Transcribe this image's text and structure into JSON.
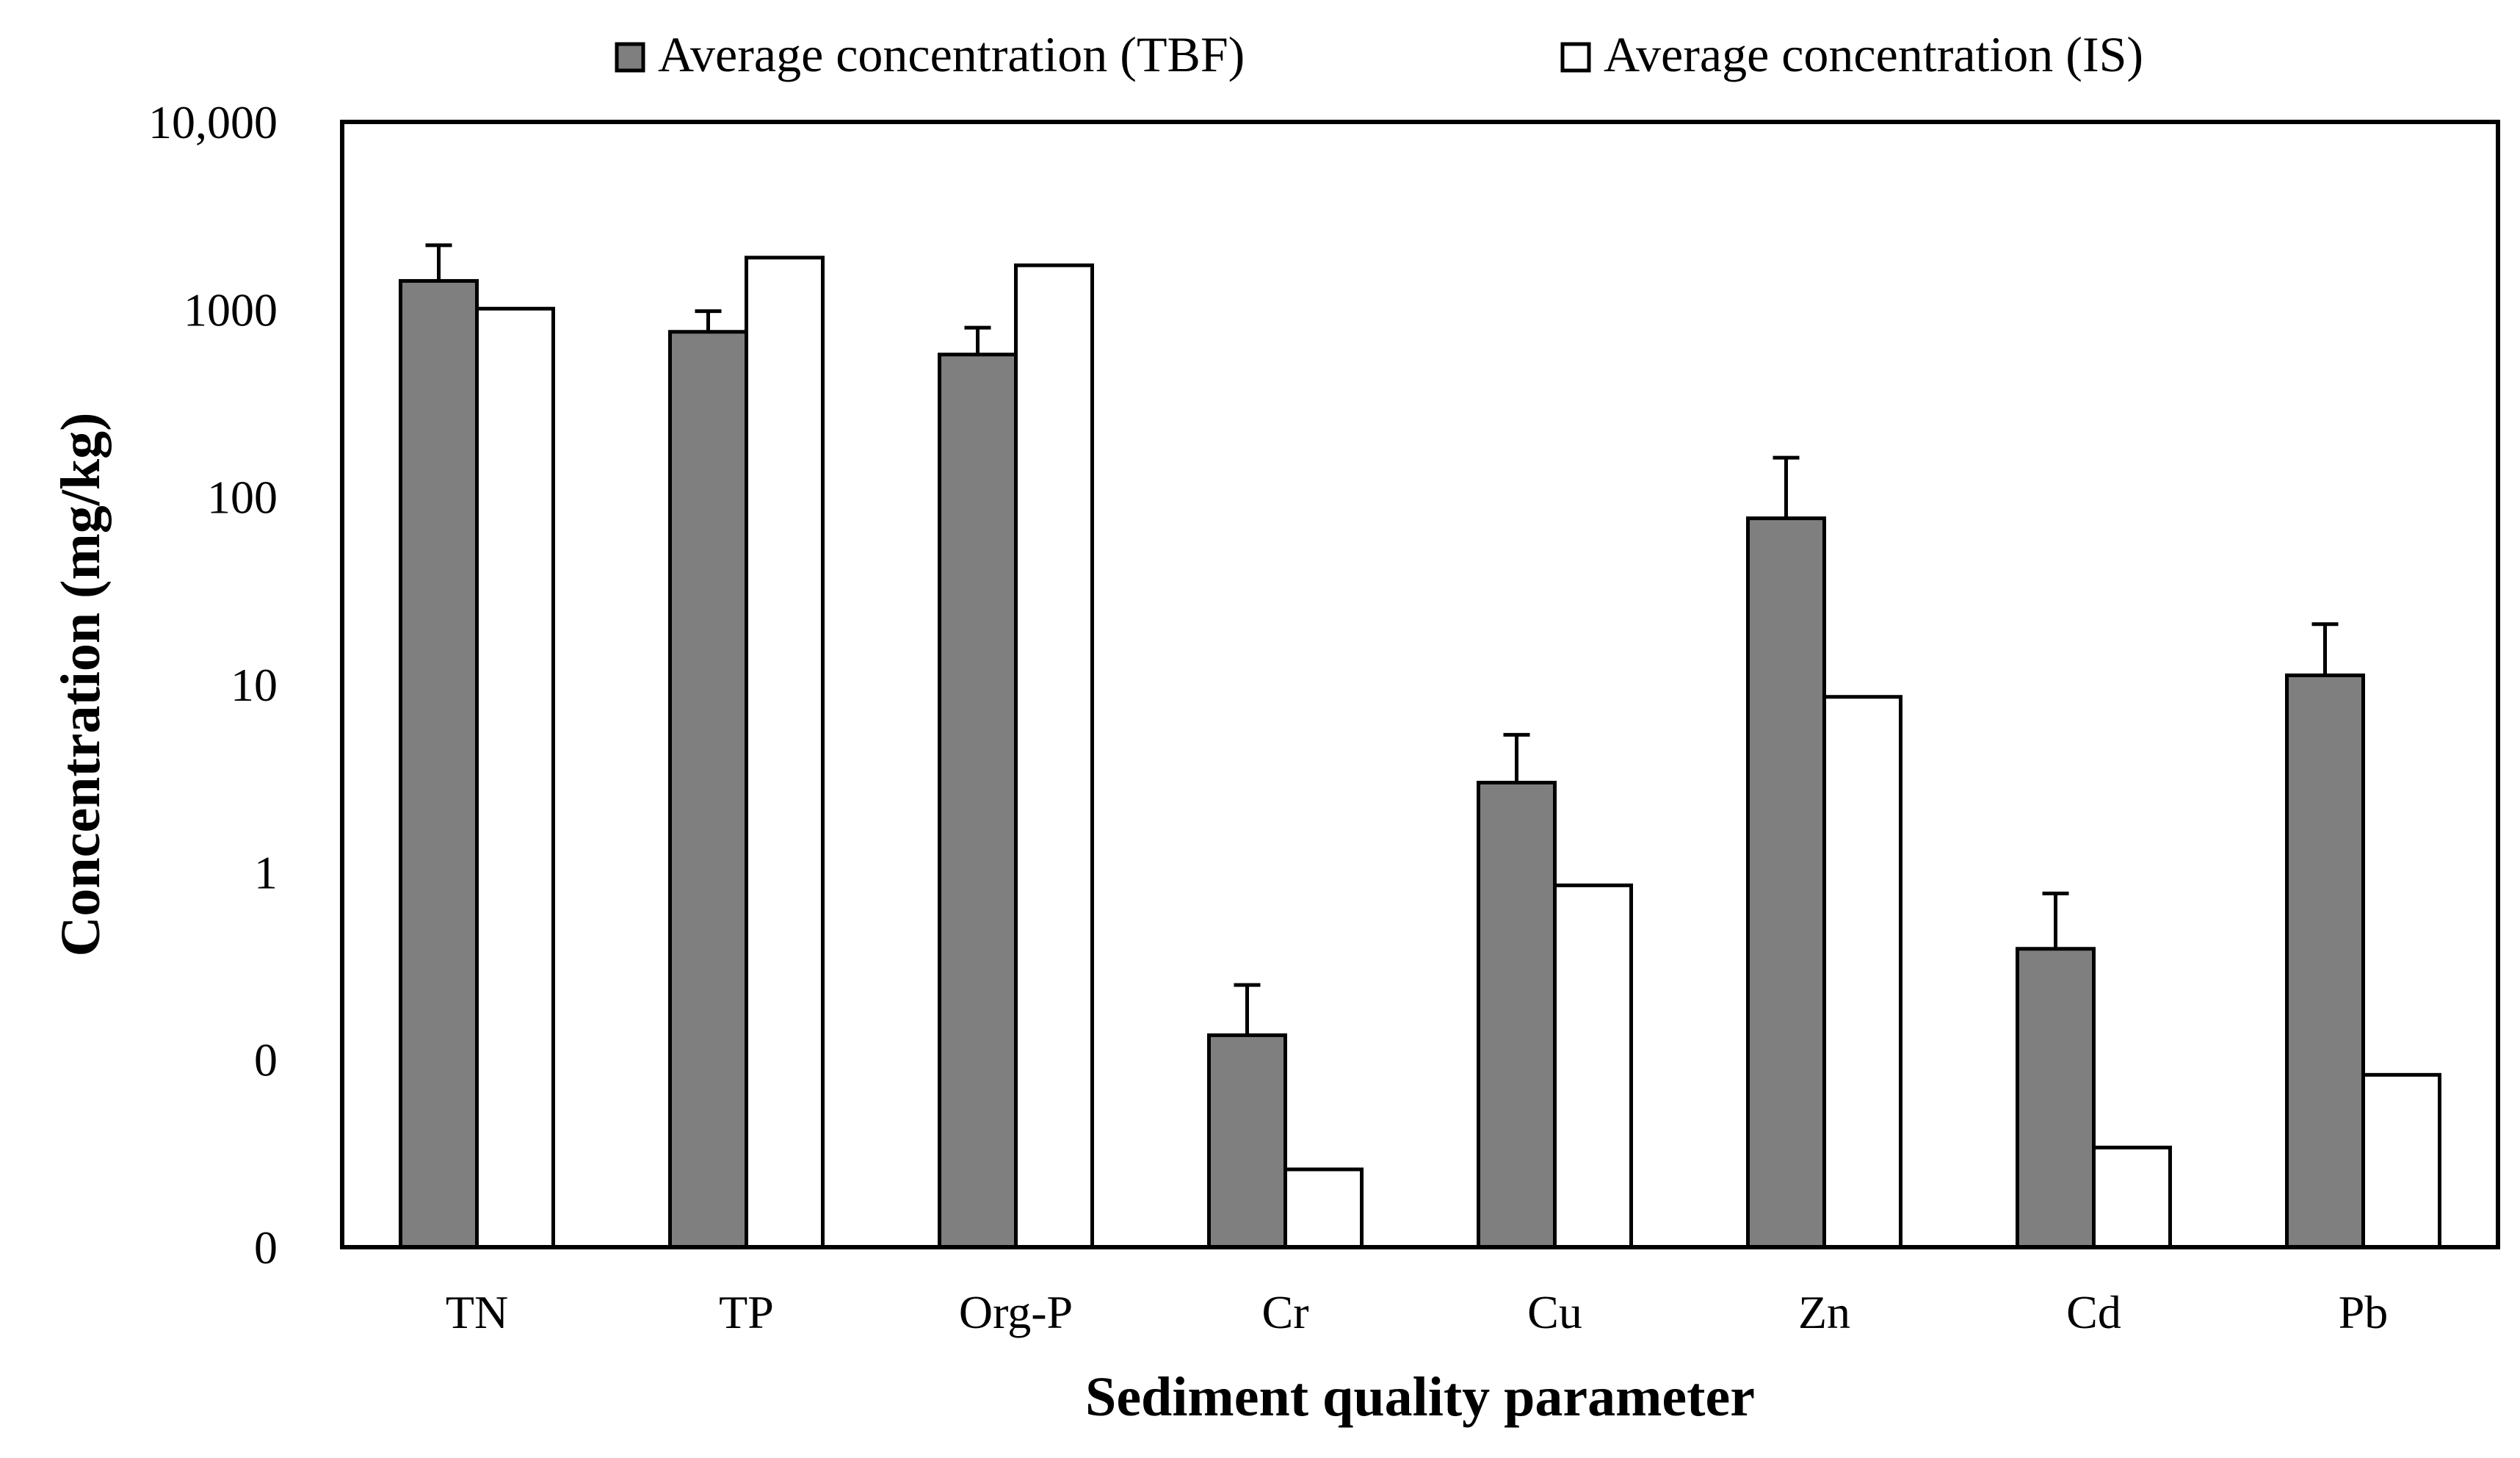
{
  "chart_data": {
    "type": "bar",
    "scale": "log",
    "categories": [
      "TN",
      "TP",
      "Org-P",
      "Cr",
      "Cu",
      "Zn",
      "Cd",
      "Pb"
    ],
    "series": [
      {
        "name": "Average concentration (TBF)",
        "color": "#7f7f7f",
        "values": [
          1420,
          760,
          575,
          0.135,
          3.0,
          77,
          0.39,
          11.2
        ],
        "error_upper": [
          2200,
          980,
          800,
          0.25,
          5.4,
          162,
          0.77,
          21
        ]
      },
      {
        "name": "Average concentration (IS)",
        "color": "#ffffff",
        "values": [
          1010,
          1890,
          1720,
          0.026,
          0.85,
          8.6,
          0.034,
          0.083
        ]
      }
    ],
    "y_ticks": [
      {
        "value": 0.01,
        "label": "0"
      },
      {
        "value": 0.1,
        "label": "0"
      },
      {
        "value": 1,
        "label": "1"
      },
      {
        "value": 10,
        "label": "10"
      },
      {
        "value": 100,
        "label": "100"
      },
      {
        "value": 1000,
        "label": "1000"
      },
      {
        "value": 10000,
        "label": "10,000"
      }
    ],
    "ylim": [
      0.01,
      10000
    ],
    "xlabel": "Sediment quality parameter",
    "ylabel": "Concentration (mg/kg)",
    "legend_position": "top-center"
  }
}
